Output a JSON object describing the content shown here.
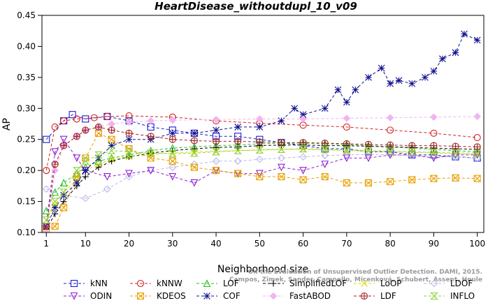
{
  "chart_data": {
    "type": "line",
    "title": "HeartDisease_withoutdupl_10_v09",
    "xlabel": "Neighborhood size",
    "ylabel": "AP",
    "xlim": [
      1,
      100
    ],
    "ylim": [
      0.1,
      0.45
    ],
    "x_ticks": [
      1,
      10,
      20,
      30,
      40,
      50,
      60,
      70,
      80,
      90,
      100
    ],
    "y_ticks": [
      "0.10",
      "0.15",
      "0.20",
      "0.25",
      "0.30",
      "0.35",
      "0.40",
      "0.45"
    ],
    "grid": false,
    "legend_position": "bottom",
    "watermark": [
      "Campos, Zimek, Sander, Campello, Micenková, Schubert, Assent, Houle",
      "On the Evaluation of Unsupervised Outlier Detection. DAMI, 2015."
    ],
    "series": [
      {
        "name": "kNN",
        "color": "#1a1ad6",
        "marker": "square",
        "x": [
          1,
          5,
          7,
          10,
          15,
          20,
          25,
          30,
          35,
          40,
          45,
          50,
          55,
          60,
          65,
          70,
          75,
          80,
          85,
          90,
          95,
          100
        ],
        "values": [
          0.25,
          0.28,
          0.29,
          0.283,
          0.287,
          0.28,
          0.27,
          0.265,
          0.26,
          0.255,
          0.255,
          0.25,
          0.245,
          0.24,
          0.235,
          0.235,
          0.23,
          0.23,
          0.225,
          0.225,
          0.222,
          0.22
        ]
      },
      {
        "name": "kNNW",
        "color": "#d42020",
        "marker": "circle",
        "x": [
          1,
          3,
          5,
          8,
          12,
          15,
          20,
          30,
          40,
          50,
          60,
          70,
          80,
          90,
          100
        ],
        "values": [
          0.2,
          0.27,
          0.28,
          0.283,
          0.285,
          0.287,
          0.288,
          0.286,
          0.28,
          0.276,
          0.273,
          0.27,
          0.265,
          0.26,
          0.253
        ]
      },
      {
        "name": "LOF",
        "color": "#20c020",
        "marker": "triangle-up",
        "x": [
          1,
          3,
          5,
          8,
          10,
          13,
          16,
          20,
          25,
          30,
          35,
          40,
          45,
          50,
          55,
          60,
          65,
          70,
          75,
          80,
          85,
          90,
          95,
          100
        ],
        "values": [
          0.135,
          0.165,
          0.18,
          0.195,
          0.205,
          0.215,
          0.22,
          0.225,
          0.232,
          0.236,
          0.238,
          0.24,
          0.241,
          0.243,
          0.244,
          0.244,
          0.243,
          0.242,
          0.24,
          0.238,
          0.236,
          0.234,
          0.232,
          0.23
        ]
      },
      {
        "name": "SimplifiedLOF",
        "color": "#000000",
        "marker": "plus",
        "x": [
          1,
          3,
          5,
          8,
          10,
          13,
          16,
          20,
          25,
          30,
          35,
          40,
          45,
          50,
          55,
          60,
          65,
          70,
          75,
          80,
          85,
          90,
          95,
          100
        ],
        "values": [
          0.105,
          0.13,
          0.15,
          0.175,
          0.19,
          0.205,
          0.215,
          0.222,
          0.228,
          0.232,
          0.235,
          0.237,
          0.238,
          0.24,
          0.241,
          0.241,
          0.24,
          0.24,
          0.239,
          0.238,
          0.237,
          0.236,
          0.235,
          0.234
        ]
      },
      {
        "name": "LoOP",
        "color": "#d8d800",
        "marker": "x",
        "x": [
          1,
          3,
          5,
          8,
          10,
          13,
          16,
          20,
          25,
          30,
          35,
          40,
          45,
          50,
          55,
          60,
          65,
          70,
          75,
          80,
          85,
          90,
          95,
          100
        ],
        "values": [
          0.12,
          0.145,
          0.165,
          0.185,
          0.2,
          0.21,
          0.218,
          0.222,
          0.226,
          0.228,
          0.23,
          0.231,
          0.232,
          0.233,
          0.234,
          0.234,
          0.233,
          0.232,
          0.231,
          0.23,
          0.229,
          0.228,
          0.227,
          0.226
        ]
      },
      {
        "name": "LDOF",
        "color": "#b8b8ec",
        "marker": "diamond",
        "x": [
          1,
          5,
          10,
          15,
          20,
          25,
          30,
          35,
          40,
          45,
          50,
          55,
          60,
          65,
          70,
          75,
          80,
          85,
          90,
          95,
          100
        ],
        "values": [
          0.17,
          0.16,
          0.155,
          0.17,
          0.19,
          0.2,
          0.205,
          0.21,
          0.215,
          0.215,
          0.218,
          0.22,
          0.222,
          0.224,
          0.225,
          0.226,
          0.225,
          0.224,
          0.222,
          0.222,
          0.22
        ]
      },
      {
        "name": "ODIN",
        "color": "#9020d0",
        "marker": "triangle-down",
        "x": [
          1,
          3,
          5,
          8,
          10,
          15,
          20,
          25,
          30,
          35,
          40,
          45,
          50,
          55,
          60,
          65,
          70,
          75,
          80,
          85,
          90,
          95,
          100
        ],
        "values": [
          0.11,
          0.23,
          0.25,
          0.22,
          0.2,
          0.19,
          0.195,
          0.2,
          0.19,
          0.18,
          0.2,
          0.195,
          0.195,
          0.205,
          0.2,
          0.21,
          0.22,
          0.22,
          0.225,
          0.225,
          0.22,
          0.225,
          0.225
        ]
      },
      {
        "name": "KDEOS",
        "color": "#e8a000",
        "marker": "square-x",
        "x": [
          1,
          3,
          5,
          8,
          10,
          13,
          16,
          20,
          25,
          30,
          35,
          40,
          45,
          50,
          55,
          60,
          65,
          70,
          75,
          80,
          85,
          90,
          95,
          100
        ],
        "values": [
          0.105,
          0.11,
          0.14,
          0.19,
          0.22,
          0.26,
          0.25,
          0.235,
          0.22,
          0.215,
          0.205,
          0.2,
          0.195,
          0.19,
          0.19,
          0.185,
          0.19,
          0.18,
          0.18,
          0.182,
          0.185,
          0.187,
          0.188,
          0.187
        ]
      },
      {
        "name": "COF",
        "color": "#101090",
        "marker": "asterisk",
        "x": [
          1,
          3,
          5,
          8,
          10,
          13,
          16,
          20,
          25,
          30,
          35,
          40,
          45,
          50,
          55,
          58,
          60,
          65,
          68,
          70,
          72,
          75,
          78,
          80,
          82,
          85,
          88,
          90,
          92,
          95,
          97,
          100
        ],
        "values": [
          0.11,
          0.14,
          0.16,
          0.18,
          0.2,
          0.22,
          0.24,
          0.25,
          0.25,
          0.26,
          0.26,
          0.265,
          0.27,
          0.27,
          0.28,
          0.3,
          0.29,
          0.3,
          0.33,
          0.31,
          0.33,
          0.35,
          0.365,
          0.34,
          0.345,
          0.34,
          0.35,
          0.36,
          0.38,
          0.39,
          0.42,
          0.41
        ]
      },
      {
        "name": "FastABOD",
        "color": "#f0b4f0",
        "marker": "diamond-filled",
        "x": [
          1,
          3,
          5,
          8,
          10,
          13,
          16,
          20,
          25,
          30,
          40,
          50,
          60,
          70,
          80,
          90,
          100
        ],
        "values": [
          0.1,
          0.2,
          0.24,
          0.255,
          0.265,
          0.27,
          0.275,
          0.278,
          0.28,
          0.281,
          0.282,
          0.283,
          0.283,
          0.284,
          0.285,
          0.286,
          0.287
        ]
      },
      {
        "name": "LDF",
        "color": "#a02020",
        "marker": "circle-plus",
        "x": [
          1,
          3,
          5,
          8,
          10,
          13,
          16,
          20,
          25,
          30,
          35,
          40,
          45,
          50,
          55,
          60,
          65,
          70,
          75,
          80,
          85,
          90,
          95,
          100
        ],
        "values": [
          0.11,
          0.21,
          0.24,
          0.255,
          0.265,
          0.27,
          0.265,
          0.26,
          0.255,
          0.25,
          0.248,
          0.247,
          0.247,
          0.246,
          0.245,
          0.245,
          0.244,
          0.243,
          0.242,
          0.241,
          0.24,
          0.24,
          0.239,
          0.238
        ]
      },
      {
        "name": "INFLO",
        "color": "#90d040",
        "marker": "hourglass",
        "x": [
          1,
          3,
          5,
          8,
          10,
          13,
          16,
          20,
          25,
          30,
          35,
          40,
          45,
          50,
          55,
          60,
          65,
          70,
          75,
          80,
          85,
          90,
          95,
          100
        ],
        "values": [
          0.12,
          0.15,
          0.165,
          0.2,
          0.215,
          0.225,
          0.232,
          0.23,
          0.228,
          0.227,
          0.228,
          0.23,
          0.232,
          0.233,
          0.234,
          0.235,
          0.234,
          0.233,
          0.232,
          0.231,
          0.23,
          0.229,
          0.228,
          0.228
        ]
      }
    ]
  },
  "legend_rows": [
    [
      "kNN",
      "kNNW",
      "LOF",
      "SimplifiedLOF",
      "LoOP",
      "LDOF"
    ],
    [
      "ODIN",
      "KDEOS",
      "COF",
      "FastABOD",
      "LDF",
      "INFLO"
    ]
  ]
}
